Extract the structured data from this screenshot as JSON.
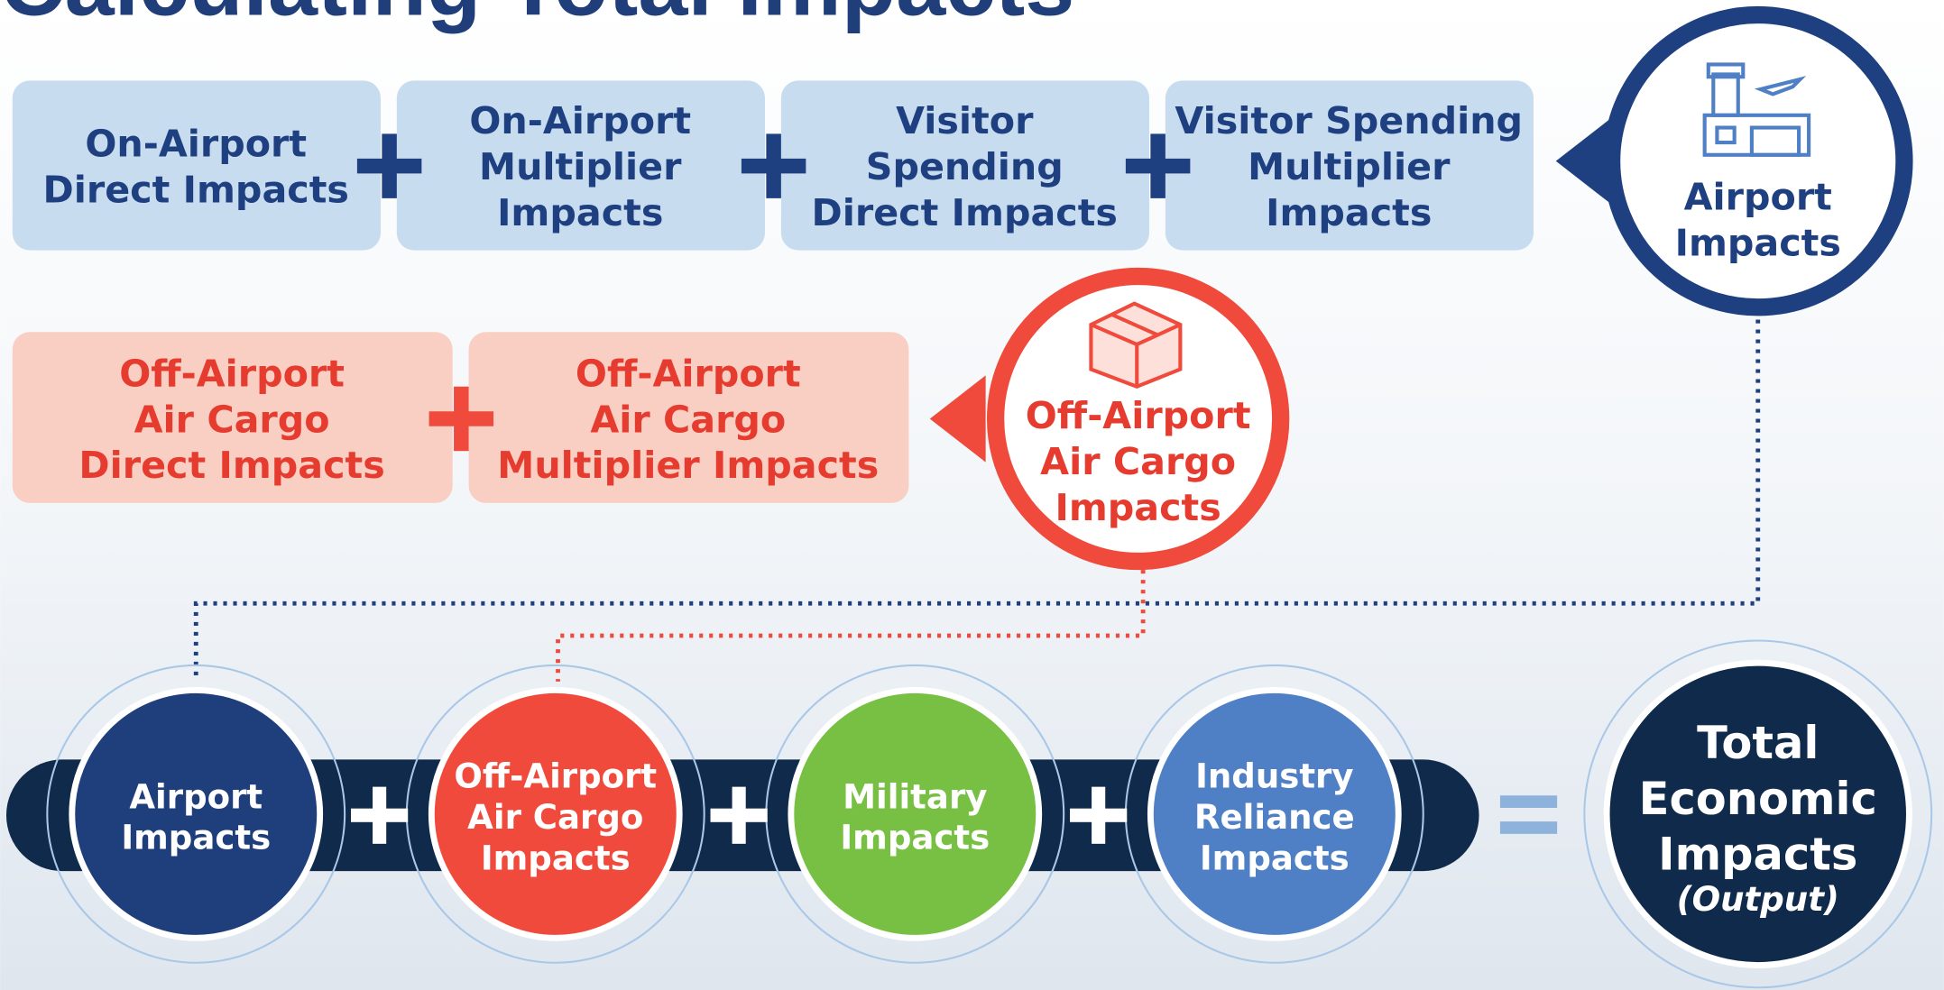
{
  "header": {
    "title": "Calculating Total Impacts"
  },
  "airport_row": {
    "boxes": [
      [
        "On-Airport",
        "Direct Impacts"
      ],
      [
        "On-Airport",
        "Multiplier",
        "Impacts"
      ],
      [
        "Visitor",
        "Spending",
        "Direct Impacts"
      ],
      [
        "Visitor Spending",
        "Multiplier",
        "Impacts"
      ]
    ],
    "result": [
      "Airport",
      "Impacts"
    ]
  },
  "cargo_row": {
    "boxes": [
      [
        "Off-Airport",
        "Air Cargo",
        "Direct Impacts"
      ],
      [
        "Off-Airport",
        "Air Cargo",
        "Multiplier Impacts"
      ]
    ],
    "result": [
      "Off-Airport",
      "Air Cargo",
      "Impacts"
    ]
  },
  "bottom_row": {
    "circles": [
      [
        "Airport",
        "Impacts"
      ],
      [
        "Off-Airport",
        "Air Cargo",
        "Impacts"
      ],
      [
        "Military",
        "Impacts"
      ],
      [
        "Industry",
        "Reliance",
        "Impacts"
      ]
    ],
    "total": [
      "Total",
      "Economic",
      "Impacts"
    ],
    "total_note": "(Output)"
  }
}
